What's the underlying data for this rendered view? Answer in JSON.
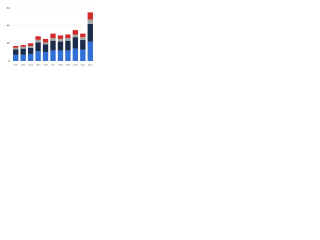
{
  "chart_data": {
    "type": "stacked-bar",
    "categories": [
      "2012",
      "2013",
      "2014",
      "2015",
      "2016",
      "2017",
      "2018",
      "2019",
      "2020",
      "2021",
      "2022"
    ],
    "series": [
      {
        "color": "#2f6fd6",
        "values": [
          7,
          7,
          8,
          11,
          10,
          12,
          12,
          12,
          14,
          13,
          22
        ]
      },
      {
        "color": "#1a2b4c",
        "values": [
          6,
          7,
          7,
          10,
          9,
          11,
          10,
          11,
          13,
          11,
          20
        ]
      },
      {
        "color": "#a5a5a5",
        "values": [
          2,
          2,
          2,
          3,
          2,
          3,
          3,
          3,
          3,
          3,
          5
        ]
      },
      {
        "color": "#d12b2b",
        "values": [
          2,
          2,
          3,
          4,
          4,
          5,
          4,
          4,
          5,
          4,
          8
        ]
      }
    ],
    "ylim": [
      0,
      60
    ],
    "yticks": [
      0,
      20,
      40,
      60
    ],
    "grid": true
  }
}
